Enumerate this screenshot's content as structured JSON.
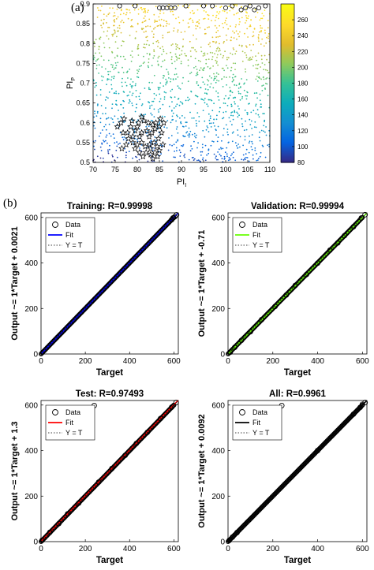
{
  "panel_a_label": "(a)",
  "panel_b_label": "(b)",
  "chart_data": [
    {
      "type": "scatter",
      "xlabel": "PI",
      "xlabel_subscript": "I",
      "ylabel": "PI",
      "ylabel_subscript": "P",
      "xlim": [
        70,
        110
      ],
      "ylim": [
        0.5,
        0.9
      ],
      "xticks": [
        70,
        75,
        80,
        85,
        90,
        95,
        100,
        105,
        110
      ],
      "yticks": [
        0.5,
        0.55,
        0.6,
        0.65,
        0.7,
        0.75,
        0.8,
        0.85,
        0.9
      ],
      "colorbar": {
        "min": 80,
        "max": 280,
        "ticks": [
          80,
          100,
          120,
          140,
          160,
          180,
          200,
          220,
          240,
          260
        ],
        "colormap": "parula"
      },
      "star_markers": [
        [
          75.5,
          0.59
        ],
        [
          76.3,
          0.6
        ],
        [
          77.0,
          0.61
        ],
        [
          76.8,
          0.575
        ],
        [
          78.0,
          0.56
        ],
        [
          79.0,
          0.55
        ],
        [
          80.0,
          0.545
        ],
        [
          81.0,
          0.55
        ],
        [
          80.5,
          0.565
        ],
        [
          79.5,
          0.58
        ],
        [
          80.3,
          0.6
        ],
        [
          81.5,
          0.605
        ],
        [
          82.5,
          0.6
        ],
        [
          83.5,
          0.595
        ],
        [
          84.2,
          0.6
        ],
        [
          85.0,
          0.59
        ],
        [
          85.5,
          0.575
        ],
        [
          84.8,
          0.56
        ],
        [
          83.8,
          0.55
        ],
        [
          82.8,
          0.545
        ],
        [
          81.8,
          0.54
        ],
        [
          82.0,
          0.525
        ],
        [
          83.0,
          0.52
        ],
        [
          84.0,
          0.525
        ],
        [
          85.0,
          0.53
        ],
        [
          85.8,
          0.545
        ],
        [
          81.0,
          0.575
        ],
        [
          82.2,
          0.58
        ],
        [
          83.3,
          0.575
        ],
        [
          84.0,
          0.585
        ],
        [
          78.5,
          0.59
        ],
        [
          77.5,
          0.545
        ],
        [
          76.5,
          0.535
        ],
        [
          79.5,
          0.535
        ],
        [
          80.5,
          0.525
        ],
        [
          81.3,
          0.515
        ],
        [
          83.5,
          0.51
        ],
        [
          84.6,
          0.515
        ],
        [
          82.7,
          0.565
        ],
        [
          80.0,
          0.59
        ],
        [
          78.8,
          0.605
        ],
        [
          81.0,
          0.615
        ],
        [
          85.2,
          0.61
        ],
        [
          86.0,
          0.6
        ],
        [
          77.8,
          0.575
        ],
        [
          83.0,
          0.535
        ],
        [
          79.0,
          0.565
        ],
        [
          84.5,
          0.54
        ]
      ],
      "circle_markers": [
        [
          76.0,
          0.895
        ],
        [
          79.5,
          0.895
        ],
        [
          85.0,
          0.89
        ],
        [
          85.8,
          0.89
        ],
        [
          86.7,
          0.89
        ],
        [
          87.6,
          0.89
        ],
        [
          88.5,
          0.89
        ],
        [
          91.0,
          0.895
        ],
        [
          95.0,
          0.895
        ],
        [
          97.0,
          0.895
        ],
        [
          100.0,
          0.89
        ],
        [
          101.5,
          0.895
        ],
        [
          103.5,
          0.885
        ],
        [
          104.5,
          0.89
        ],
        [
          105.5,
          0.895
        ],
        [
          106.5,
          0.885
        ],
        [
          107.5,
          0.89
        ],
        [
          109.0,
          0.895
        ]
      ]
    },
    {
      "type": "scatter",
      "title": "Training: R=0.99998",
      "xlabel": "Target",
      "ylabel": "Output ~= 1*Target + 0.0021",
      "xlim": [
        0,
        620
      ],
      "ylim": [
        0,
        620
      ],
      "ticks": [
        0,
        200,
        400,
        600
      ],
      "fit_color": "#0000ff",
      "fit": {
        "slope": 1,
        "intercept": 0.0021
      },
      "points": [
        [
          590,
          590
        ],
        [
          596,
          598
        ],
        [
          604,
          603
        ],
        [
          612,
          611
        ]
      ],
      "legend": [
        "Data",
        "Fit",
        "Y = T"
      ]
    },
    {
      "type": "scatter",
      "title": "Validation: R=0.99994",
      "xlabel": "Target",
      "ylabel": "Output ~= 1*Target + -0.71",
      "xlim": [
        0,
        620
      ],
      "ylim": [
        0,
        620
      ],
      "ticks": [
        0,
        200,
        400,
        600
      ],
      "fit_color": "#66ff00",
      "fit": {
        "slope": 1,
        "intercept": -0.71
      },
      "points": [
        [
          10,
          8
        ],
        [
          30,
          29
        ],
        [
          60,
          60
        ],
        [
          100,
          98
        ],
        [
          150,
          151
        ],
        [
          210,
          209
        ],
        [
          260,
          259
        ],
        [
          300,
          301
        ],
        [
          350,
          349
        ],
        [
          400,
          399
        ],
        [
          455,
          456
        ],
        [
          490,
          488
        ],
        [
          520,
          520
        ],
        [
          560,
          559
        ],
        [
          595,
          597
        ],
        [
          612,
          612
        ]
      ],
      "legend": [
        "Data",
        "Fit",
        "Y = T"
      ]
    },
    {
      "type": "scatter",
      "title": "Test: R=0.97493",
      "xlabel": "Target",
      "ylabel": "Output ~= 1*Target + 1.3",
      "xlim": [
        0,
        620
      ],
      "ylim": [
        0,
        620
      ],
      "ticks": [
        0,
        200,
        400,
        600
      ],
      "fit_color": "#ff0000",
      "fit": {
        "slope": 1,
        "intercept": 1.3
      },
      "points": [
        [
          5,
          6
        ],
        [
          40,
          41
        ],
        [
          80,
          79
        ],
        [
          120,
          122
        ],
        [
          170,
          169
        ],
        [
          240,
          598
        ],
        [
          260,
          261
        ],
        [
          320,
          321
        ],
        [
          380,
          379
        ],
        [
          430,
          431
        ],
        [
          480,
          480
        ],
        [
          540,
          541
        ],
        [
          590,
          591
        ],
        [
          610,
          611
        ]
      ],
      "legend": [
        "Data",
        "Fit",
        "Y = T"
      ]
    },
    {
      "type": "scatter",
      "title": "All: R=0.9961",
      "xlabel": "Target",
      "ylabel": "Output ~= 1*Target + 0.0092",
      "xlim": [
        0,
        620
      ],
      "ylim": [
        0,
        620
      ],
      "ticks": [
        0,
        200,
        400,
        600
      ],
      "fit_color": "#000000",
      "fit": {
        "slope": 1,
        "intercept": 0.0092
      },
      "points": [
        [
          5,
          5
        ],
        [
          20,
          20
        ],
        [
          40,
          40
        ],
        [
          240,
          598
        ],
        [
          400,
          400
        ],
        [
          560,
          560
        ],
        [
          590,
          590
        ],
        [
          600,
          603
        ],
        [
          612,
          611
        ]
      ],
      "legend": [
        "Data",
        "Fit",
        "Y = T"
      ]
    }
  ]
}
